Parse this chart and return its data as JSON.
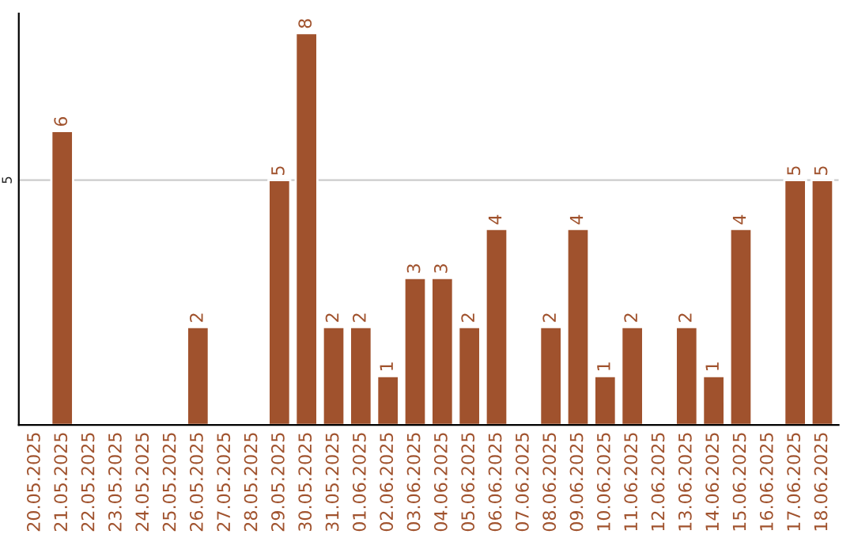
{
  "chart_data": {
    "type": "bar",
    "categories": [
      "20.05.2025",
      "21.05.2025",
      "22.05.2025",
      "23.05.2025",
      "24.05.2025",
      "25.05.2025",
      "26.05.2025",
      "27.05.2025",
      "28.05.2025",
      "29.05.2025",
      "30.05.2025",
      "31.05.2025",
      "01.06.2025",
      "02.06.2025",
      "03.06.2025",
      "04.06.2025",
      "05.06.2025",
      "06.06.2025",
      "07.06.2025",
      "08.06.2025",
      "09.06.2025",
      "10.06.2025",
      "11.06.2025",
      "12.06.2025",
      "13.06.2025",
      "14.06.2025",
      "15.06.2025",
      "16.06.2025",
      "17.06.2025",
      "18.06.2025"
    ],
    "values": [
      null,
      6,
      null,
      null,
      null,
      null,
      2,
      null,
      null,
      5,
      8,
      2,
      2,
      1,
      3,
      3,
      2,
      4,
      null,
      2,
      4,
      1,
      2,
      null,
      2,
      1,
      4,
      null,
      5,
      5
    ],
    "color": "#a0522d",
    "ylim": [
      0,
      8.4
    ],
    "yticks": [
      5
    ],
    "grid": "y",
    "data_labels": true
  }
}
